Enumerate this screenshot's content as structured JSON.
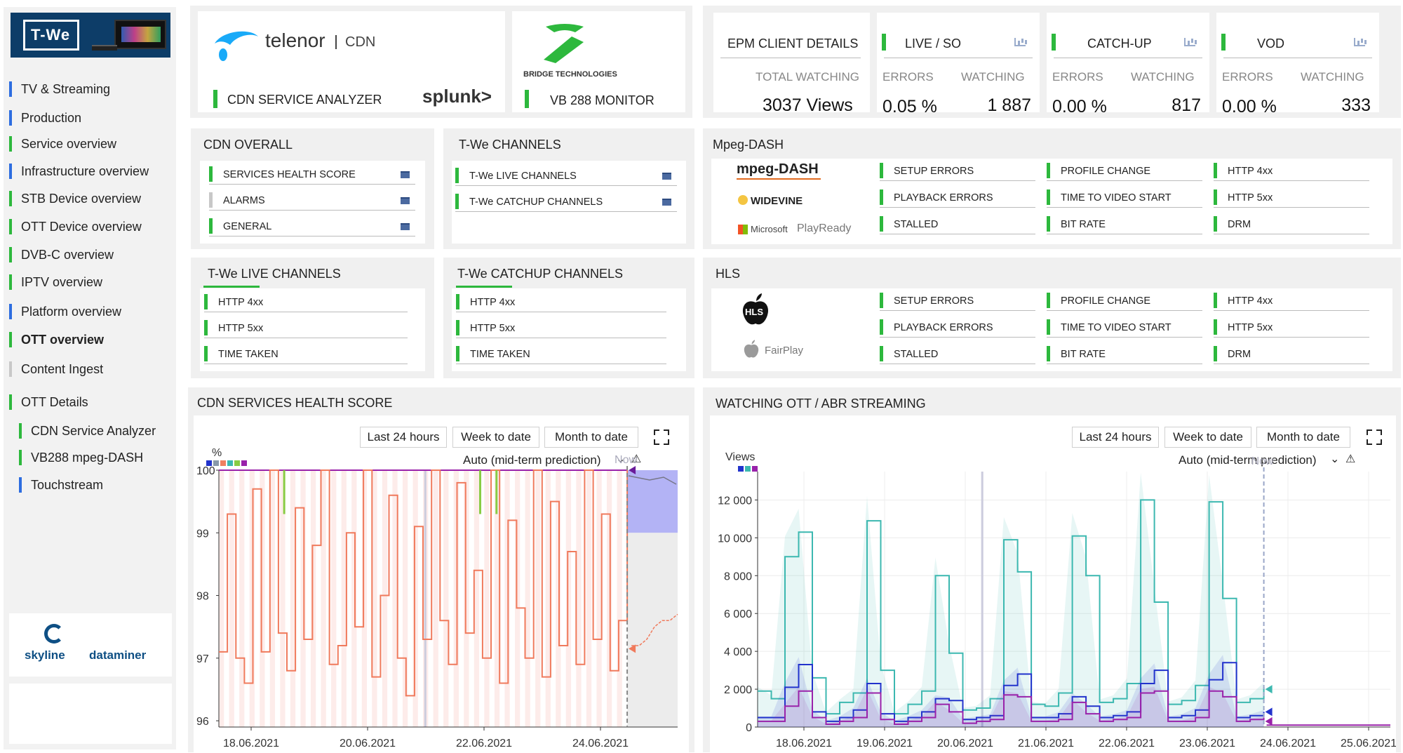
{
  "sidebar": {
    "logo_text": "T-We",
    "items": [
      {
        "label": "TV & Streaming",
        "color": "#2d6de0"
      },
      {
        "label": "Production",
        "color": "#2d6de0"
      },
      {
        "label": "Service overview",
        "color": "#2db83d"
      },
      {
        "label": "Infrastructure overview",
        "color": "#2d6de0"
      },
      {
        "label": "STB Device overview",
        "color": "#2db83d"
      },
      {
        "label": "OTT Device overview",
        "color": "#2db83d"
      },
      {
        "label": "DVB-C overview",
        "color": "#2db83d"
      },
      {
        "label": "IPTV overview",
        "color": "#2db83d"
      },
      {
        "label": "Platform overview",
        "color": "#2d6de0"
      },
      {
        "label": "OTT overview",
        "color": "#2db83d"
      },
      {
        "label": "Content Ingest",
        "color": "#c8c8c8"
      },
      {
        "label": "OTT Details",
        "color": "#2db83d"
      },
      {
        "label": "CDN Service Analyzer",
        "color": "#2db83d"
      },
      {
        "label": "VB288 mpeg-DASH",
        "color": "#2db83d"
      },
      {
        "label": "Touchstream",
        "color": "#2d6de0"
      }
    ],
    "skyline": "skyline",
    "dataminer": "dataminer"
  },
  "cdn_card": {
    "brand": "telenor",
    "suffix": "CDN",
    "label": "CDN SERVICE ANALYZER",
    "splunk": "splunk>"
  },
  "vb_card": {
    "brand": "BRIDGE TECHNOLOGIES",
    "label": "VB 288 MONITOR"
  },
  "epm": {
    "title": "EPM CLIENT DETAILS",
    "total_label": "TOTAL WATCHING",
    "total_value": "3037 Views",
    "groups": [
      {
        "title": "LIVE / SO",
        "errors_label": "ERRORS",
        "errors": "0.05 %",
        "watching_label": "WATCHING",
        "watching": "1 887"
      },
      {
        "title": "CATCH-UP",
        "errors_label": "ERRORS",
        "errors": "0.00 %",
        "watching_label": "WATCHING",
        "watching": "817"
      },
      {
        "title": "VOD",
        "errors_label": "ERRORS",
        "errors": "0.00 %",
        "watching_label": "WATCHING",
        "watching": "333"
      }
    ]
  },
  "cdn_overall": {
    "title": "CDN OVERALL",
    "rows": [
      "SERVICES HEALTH SCORE",
      "ALARMS",
      "GENERAL"
    ]
  },
  "twe_channels": {
    "title": "T-We CHANNELS",
    "rows": [
      "T-We LIVE CHANNELS",
      "T-We CATCHUP CHANNELS"
    ]
  },
  "twe_live": {
    "title": "T-We LIVE CHANNELS",
    "rows": [
      "HTTP 4xx",
      "HTTP 5xx",
      "TIME TAKEN"
    ]
  },
  "twe_catchup": {
    "title": "T-We CATCHUP CHANNELS",
    "rows": [
      "HTTP 4xx",
      "HTTP 5xx",
      "TIME TAKEN"
    ]
  },
  "dash": {
    "title": "Mpeg-DASH",
    "logos": [
      "mpeg-DASH",
      "WIDEVINE",
      "Microsoft",
      "PlayReady"
    ],
    "cols": [
      [
        "SETUP ERRORS",
        "PLAYBACK ERRORS",
        "STALLED"
      ],
      [
        "PROFILE CHANGE",
        "TIME TO VIDEO START",
        "BIT RATE"
      ],
      [
        "HTTP 4xx",
        "HTTP 5xx",
        "DRM"
      ]
    ]
  },
  "hls": {
    "title": "HLS",
    "logos": [
      "HLS",
      "FairPlay"
    ],
    "cols": [
      [
        "SETUP ERRORS",
        "PLAYBACK ERRORS",
        "STALLED"
      ],
      [
        "PROFILE CHANGE",
        "TIME TO VIDEO START",
        "BIT RATE"
      ],
      [
        "HTTP 4xx",
        "HTTP 5xx",
        "DRM"
      ]
    ]
  },
  "health_chart": {
    "title": "CDN SERVICES HEALTH SCORE",
    "buttons": [
      "Last 24 hours",
      "Week to date",
      "Month to date"
    ],
    "mode": "Auto (mid-term prediction)",
    "now": "Now",
    "legend_colors": [
      "#2233cc",
      "#8899aa",
      "#f08060",
      "#3cb8b0",
      "#88cc44",
      "#9922aa"
    ]
  },
  "watching_chart": {
    "title": "WATCHING OTT / ABR STREAMING",
    "buttons": [
      "Last 24 hours",
      "Week to date",
      "Month to date"
    ],
    "mode": "Auto (mid-term prediction)",
    "now": "Now",
    "legend_colors": [
      "#2233cc",
      "#3cb8b0",
      "#9922aa"
    ]
  },
  "chart_data": [
    {
      "type": "line",
      "title": "CDN SERVICES HEALTH SCORE",
      "ylabel": "%",
      "ylim": [
        95.9,
        100
      ],
      "yticks": [
        100,
        99,
        98,
        97,
        96
      ],
      "xticks": [
        "18.06.2021",
        "20.06.2021",
        "22.06.2021",
        "24.06.2021"
      ],
      "series": [
        {
          "values": [
            97.1,
            99.3,
            97.0,
            96.6,
            99.7,
            97.1,
            100,
            97.4,
            96.8,
            99.4,
            97.3,
            98.8,
            100,
            96.9,
            97.2,
            99.0,
            97.5,
            100,
            96.7,
            98.0,
            99.6,
            97.0,
            96.4,
            99.1,
            97.3,
            100,
            97.6,
            96.9,
            99.8,
            97.4,
            98.4,
            97.0,
            100,
            96.6,
            99.2,
            97.8,
            97.0,
            100,
            96.7,
            99.5,
            97.2,
            98.7,
            96.9,
            100,
            97.3,
            99.3,
            96.8,
            97.6,
            100
          ]
        },
        {
          "values": [
            97.2,
            97.2,
            97.3,
            97.5,
            97.6,
            97.6,
            97.7
          ]
        }
      ]
    },
    {
      "type": "line",
      "title": "WATCHING OTT / ABR STREAMING",
      "ylabel": "Views",
      "ylim": [
        0,
        13500
      ],
      "yticks": [
        12000,
        10000,
        8000,
        6000,
        4000,
        2000,
        0
      ],
      "xticks": [
        "18.06.2021",
        "19.06.2021",
        "20.06.2021",
        "21.06.2021",
        "22.06.2021",
        "23.06.2021",
        "24.06.2021",
        "25.06.2021"
      ],
      "series": [
        {
          "values": [
            1900,
            1500,
            9000,
            10300,
            2600,
            700,
            1300,
            1800,
            10900,
            3000,
            700,
            1200,
            1900,
            8000,
            3900,
            900,
            1000,
            1500,
            9900,
            8200,
            1200,
            1100,
            1800,
            10100,
            8000,
            1300,
            1500,
            2300,
            12000,
            6600,
            1200,
            1400,
            2200,
            11900,
            6800,
            1300,
            1500,
            2100
          ]
        },
        {
          "values": [
            500,
            500,
            2100,
            3300,
            800,
            300,
            500,
            900,
            2300,
            700,
            300,
            500,
            800,
            1500,
            1400,
            400,
            500,
            600,
            2200,
            2800,
            500,
            500,
            700,
            1600,
            1100,
            500,
            600,
            800,
            2300,
            3000,
            500,
            600,
            900,
            2500,
            3400,
            500,
            600,
            800
          ]
        },
        {
          "values": [
            300,
            300,
            1100,
            1900,
            500,
            150,
            300,
            500,
            1800,
            400,
            150,
            300,
            500,
            1200,
            800,
            200,
            300,
            400,
            1700,
            1600,
            300,
            300,
            400,
            1300,
            700,
            300,
            400,
            500,
            1800,
            1900,
            300,
            300,
            500,
            1900,
            1600,
            300,
            400,
            500
          ]
        }
      ]
    }
  ]
}
